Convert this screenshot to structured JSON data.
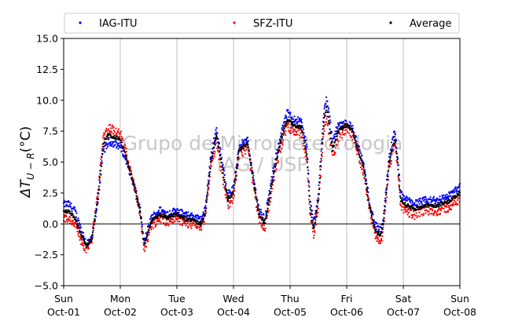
{
  "chart_data": {
    "type": "scatter",
    "ylabel": "ΔT",
    "ylabel_sub": "U − R",
    "ylabel_unit": "(°C)",
    "xlabel": "",
    "ylim": [
      -5.0,
      15.0
    ],
    "yticks": [
      "−5.0",
      "−2.5",
      "0.0",
      "2.5",
      "5.0",
      "7.5",
      "10.0",
      "12.5",
      "15.0"
    ],
    "yticks_values": [
      -5,
      -2.5,
      0,
      2.5,
      5,
      7.5,
      10,
      12.5,
      15
    ],
    "xlim": [
      0,
      7
    ],
    "xticks": [
      {
        "day": "Sun",
        "date": "Oct-01"
      },
      {
        "day": "Mon",
        "date": "Oct-02"
      },
      {
        "day": "Tue",
        "date": "Oct-03"
      },
      {
        "day": "Wed",
        "date": "Oct-04"
      },
      {
        "day": "Thu",
        "date": "Oct-05"
      },
      {
        "day": "Fri",
        "date": "Oct-06"
      },
      {
        "day": "Sat",
        "date": "Oct-07"
      },
      {
        "day": "Sun",
        "date": "Oct-08"
      }
    ],
    "grid": "vertical",
    "reference_line": 0,
    "legend_position": "top",
    "watermark": [
      "Grupo de Micrometeorologia",
      "IAG / USP"
    ],
    "series": [
      {
        "name": "IAG-ITU",
        "color": "#0000ff"
      },
      {
        "name": "SFZ-ITU",
        "color": "#ff0000"
      },
      {
        "name": "Average",
        "color": "#000000"
      }
    ],
    "average_profile": [
      [
        0.0,
        1.0
      ],
      [
        0.1,
        1.0
      ],
      [
        0.2,
        0.5
      ],
      [
        0.3,
        -0.8
      ],
      [
        0.4,
        -1.8
      ],
      [
        0.5,
        -1.2
      ],
      [
        0.6,
        2.0
      ],
      [
        0.7,
        6.5
      ],
      [
        0.8,
        7.2
      ],
      [
        0.9,
        7.0
      ],
      [
        1.0,
        6.8
      ],
      [
        1.1,
        5.5
      ],
      [
        1.25,
        3.0
      ],
      [
        1.35,
        1.0
      ],
      [
        1.42,
        -1.8
      ],
      [
        1.55,
        0.2
      ],
      [
        1.7,
        0.8
      ],
      [
        1.85,
        0.5
      ],
      [
        2.0,
        0.8
      ],
      [
        2.15,
        0.4
      ],
      [
        2.3,
        0.3
      ],
      [
        2.42,
        0.0
      ],
      [
        2.5,
        0.8
      ],
      [
        2.6,
        5.0
      ],
      [
        2.7,
        7.2
      ],
      [
        2.8,
        4.5
      ],
      [
        2.9,
        2.0
      ],
      [
        3.0,
        2.5
      ],
      [
        3.1,
        6.0
      ],
      [
        3.25,
        6.5
      ],
      [
        3.35,
        3.5
      ],
      [
        3.45,
        0.8
      ],
      [
        3.55,
        0.0
      ],
      [
        3.65,
        2.5
      ],
      [
        3.75,
        5.0
      ],
      [
        3.85,
        7.0
      ],
      [
        3.95,
        8.5
      ],
      [
        4.05,
        8.0
      ],
      [
        4.2,
        7.8
      ],
      [
        4.3,
        5.5
      ],
      [
        4.35,
        1.5
      ],
      [
        4.42,
        -0.5
      ],
      [
        4.5,
        2.0
      ],
      [
        4.6,
        8.5
      ],
      [
        4.65,
        9.5
      ],
      [
        4.75,
        6.0
      ],
      [
        4.85,
        7.5
      ],
      [
        5.0,
        8.0
      ],
      [
        5.1,
        7.5
      ],
      [
        5.2,
        6.0
      ],
      [
        5.3,
        4.5
      ],
      [
        5.4,
        1.5
      ],
      [
        5.5,
        -0.5
      ],
      [
        5.6,
        -1.0
      ],
      [
        5.65,
        0.0
      ],
      [
        5.75,
        5.0
      ],
      [
        5.85,
        7.0
      ],
      [
        5.9,
        5.0
      ],
      [
        5.95,
        2.0
      ],
      [
        6.05,
        1.5
      ],
      [
        6.2,
        1.2
      ],
      [
        6.4,
        1.5
      ],
      [
        6.6,
        1.5
      ],
      [
        6.8,
        1.8
      ],
      [
        7.0,
        2.5
      ]
    ],
    "iag_offset_profile": [
      [
        0.0,
        0.6
      ],
      [
        0.3,
        0.5
      ],
      [
        0.7,
        -0.6
      ],
      [
        1.0,
        -0.5
      ],
      [
        1.4,
        0.3
      ],
      [
        2.0,
        0.3
      ],
      [
        2.45,
        0.3
      ],
      [
        2.65,
        0.5
      ],
      [
        3.25,
        0.3
      ],
      [
        3.95,
        0.5
      ],
      [
        4.45,
        0.5
      ],
      [
        4.7,
        0.8
      ],
      [
        5.0,
        0.2
      ],
      [
        5.5,
        0.4
      ],
      [
        5.8,
        0.5
      ],
      [
        6.5,
        0.4
      ],
      [
        7.0,
        0.5
      ]
    ]
  }
}
